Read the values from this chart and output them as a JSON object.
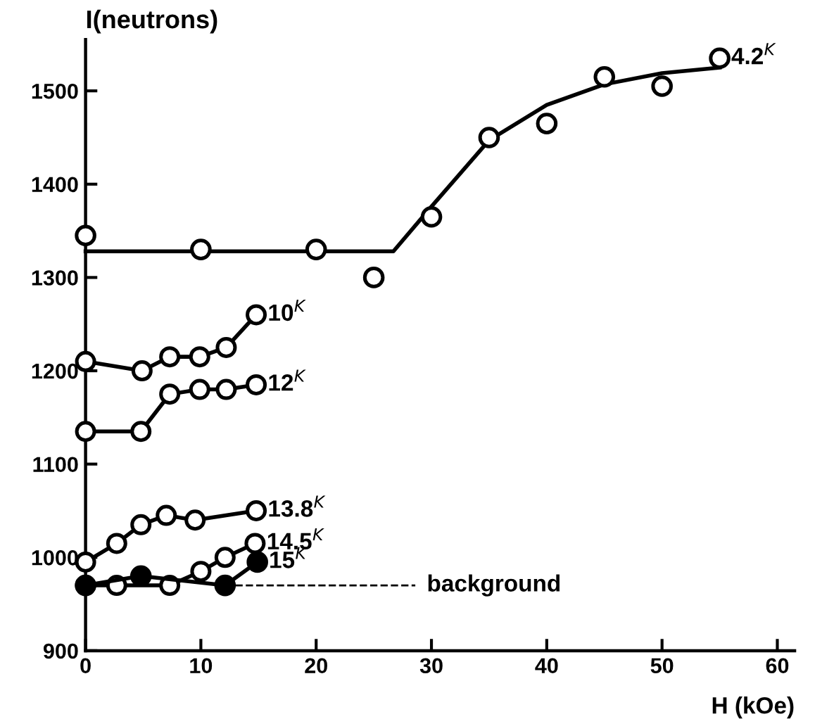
{
  "chart_data": {
    "type": "line",
    "ylabel": "I(neutrons)",
    "xlabel": "H (kOe)",
    "xlim": [
      0,
      61.5
    ],
    "ylim": [
      900,
      1555
    ],
    "xticks": [
      0,
      10,
      20,
      30,
      40,
      50,
      60
    ],
    "yticks": [
      900,
      1000,
      1100,
      1200,
      1300,
      1400,
      1500
    ],
    "grid": false,
    "legend": false,
    "marker": "circle",
    "series": [
      {
        "name": "4.2$^{K}$",
        "type": "scatter",
        "color": "#ffffff",
        "x": [
          0,
          10,
          20,
          25,
          30,
          35,
          40,
          45,
          50,
          55
        ],
        "values": [
          1345,
          1330,
          1330,
          1300,
          1365,
          1450,
          1465,
          1515,
          1505,
          1535
        ]
      },
      {
        "type": "line",
        "color": "#000000",
        "marker": "none",
        "x": [
          0,
          26.7,
          30,
          35,
          40,
          45,
          50,
          55
        ],
        "values": [
          1328,
          1328,
          1376,
          1447,
          1485,
          1507,
          1519,
          1525
        ]
      },
      {
        "name": "10$^{K}$",
        "color": "#000000",
        "x": [
          0,
          4.9,
          7.3,
          9.9,
          12.2,
          14.8
        ],
        "values": [
          1210,
          1200,
          1215,
          1215,
          1225,
          1260
        ]
      },
      {
        "name": "12$^{K}$",
        "color": "#000000",
        "x": [
          0,
          4.8,
          7.3,
          9.9,
          12.2,
          14.8
        ],
        "values": [
          1135,
          1135,
          1175,
          1180,
          1180,
          1185
        ]
      },
      {
        "name": "13.8$^{K}$",
        "color": "#000000",
        "x": [
          0,
          2.7,
          4.8,
          7.0,
          9.5,
          14.8
        ],
        "values": [
          995,
          1015,
          1035,
          1045,
          1040,
          1050
        ]
      },
      {
        "name": "14.5$^{K}$",
        "color": "#000000",
        "x": [
          0,
          2.7,
          7.3,
          10.0,
          12.1,
          14.7
        ],
        "values": [
          970,
          970,
          970,
          985,
          1000,
          1015
        ]
      },
      {
        "name": "15$^{K}$",
        "color": "#000000",
        "marker": "none",
        "x": [
          0,
          4.8,
          12.1,
          14.9
        ],
        "values": [
          970,
          980,
          970,
          995
        ]
      },
      {
        "type": "scatter",
        "color": "#000000",
        "x": [
          0,
          4.8,
          12.1,
          14.9
        ],
        "values": [
          970,
          980,
          970,
          995
        ]
      },
      {
        "name": "background",
        "color": "#000000",
        "marker": "none",
        "line_style": "dashed",
        "x": [
          12.1,
          28.6
        ],
        "values": [
          970,
          970
        ]
      }
    ]
  }
}
